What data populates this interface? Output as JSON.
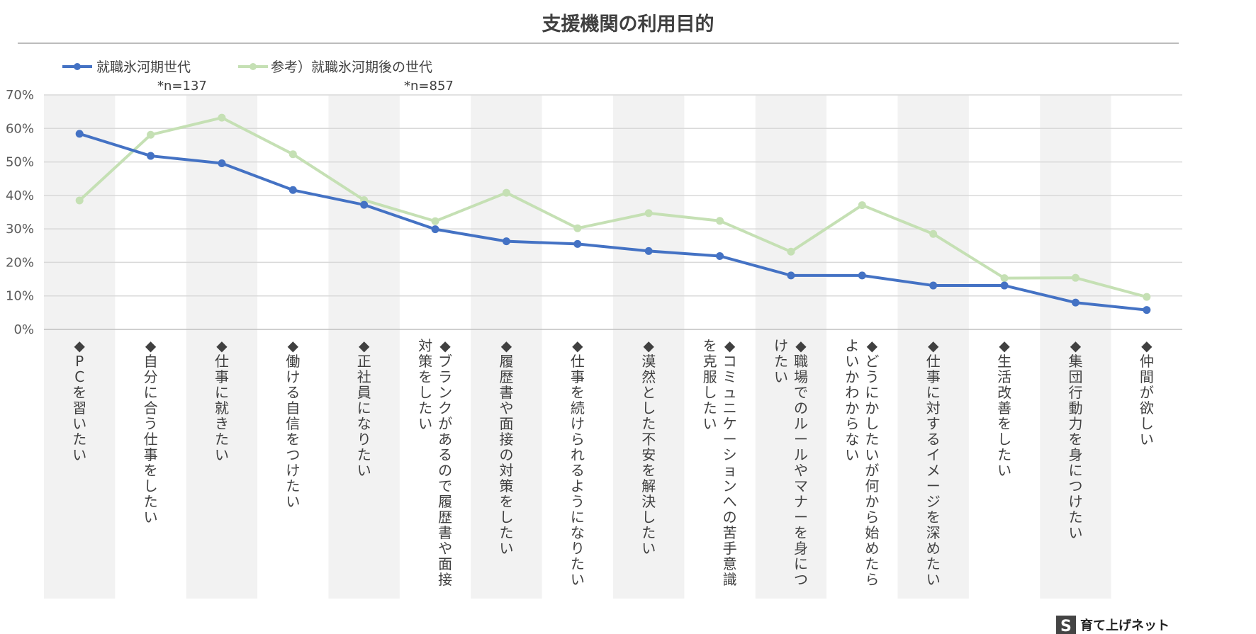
{
  "chart_data": {
    "type": "line",
    "title": "支援機関の利用目的",
    "ylim": [
      0,
      70
    ],
    "y_ticks": [
      "0%",
      "10%",
      "20%",
      "30%",
      "40%",
      "50%",
      "60%",
      "70%"
    ],
    "grid": true,
    "legend_position": "top-left",
    "categories": [
      "◆PCを習いたい",
      "◆自分に合う仕事をしたい",
      "◆仕事に就きたい",
      "◆働ける自信をつけたい",
      "◆正社員になりたい",
      "◆ブランクがあるので履歴書や面接対策をしたい",
      "◆履歴書や面接の対策をしたい",
      "◆仕事を続けられるようになりたい",
      "◆漠然とした不安を解決したい",
      "◆コミュニケーションへの苦手意識を克服したい",
      "◆職場でのルールやマナーを身につけたい",
      "◆どうにかしたいが何から始めたらよいかわからない",
      "◆仕事に対するイメージを深めたい",
      "◆生活改善をしたい",
      "◆集団行動力を身につけたい",
      "◆仲間が欲しい"
    ],
    "category_lines": [
      [
        "◆PCを習いたい"
      ],
      [
        "◆自分に合う仕事をしたい"
      ],
      [
        "◆仕事に就きたい"
      ],
      [
        "◆働ける自信をつけたい"
      ],
      [
        "◆正社員になりたい"
      ],
      [
        "◆ブランクがあるので履歴書や面接",
        "対策をしたい"
      ],
      [
        "◆履歴書や面接の対策をしたい"
      ],
      [
        "◆仕事を続けられるようになりたい"
      ],
      [
        "◆漠然とした不安を解決したい"
      ],
      [
        "◆コミュニケーションへの苦手意識",
        "を克服したい"
      ],
      [
        "◆職場でのルールやマナーを身につ",
        "けたい"
      ],
      [
        "◆どうにかしたいが何から始めたら",
        "よいかわからない"
      ],
      [
        "◆仕事に対するイメージを深めたい"
      ],
      [
        "◆生活改善をしたい"
      ],
      [
        "◆集団行動力を身につけたい"
      ],
      [
        "◆仲間が欲しい"
      ]
    ],
    "series": [
      {
        "name": "就職氷河期世代",
        "note": "*n=137",
        "color": "#4472C4",
        "values": [
          58.4,
          51.8,
          49.6,
          41.6,
          37.2,
          29.9,
          26.3,
          25.5,
          23.4,
          21.9,
          16.1,
          16.1,
          13.1,
          13.1,
          8.0,
          5.8
        ]
      },
      {
        "name": "参考）就職氷河期後の世代",
        "note": "*n=857",
        "color": "#C5E0B4",
        "values": [
          38.5,
          58.1,
          63.2,
          52.3,
          38.6,
          32.3,
          40.8,
          30.2,
          34.7,
          32.4,
          23.2,
          37.1,
          28.5,
          15.3,
          15.4,
          9.7
        ]
      }
    ]
  },
  "logo": {
    "mark": "S",
    "text": "育て上げネット"
  }
}
